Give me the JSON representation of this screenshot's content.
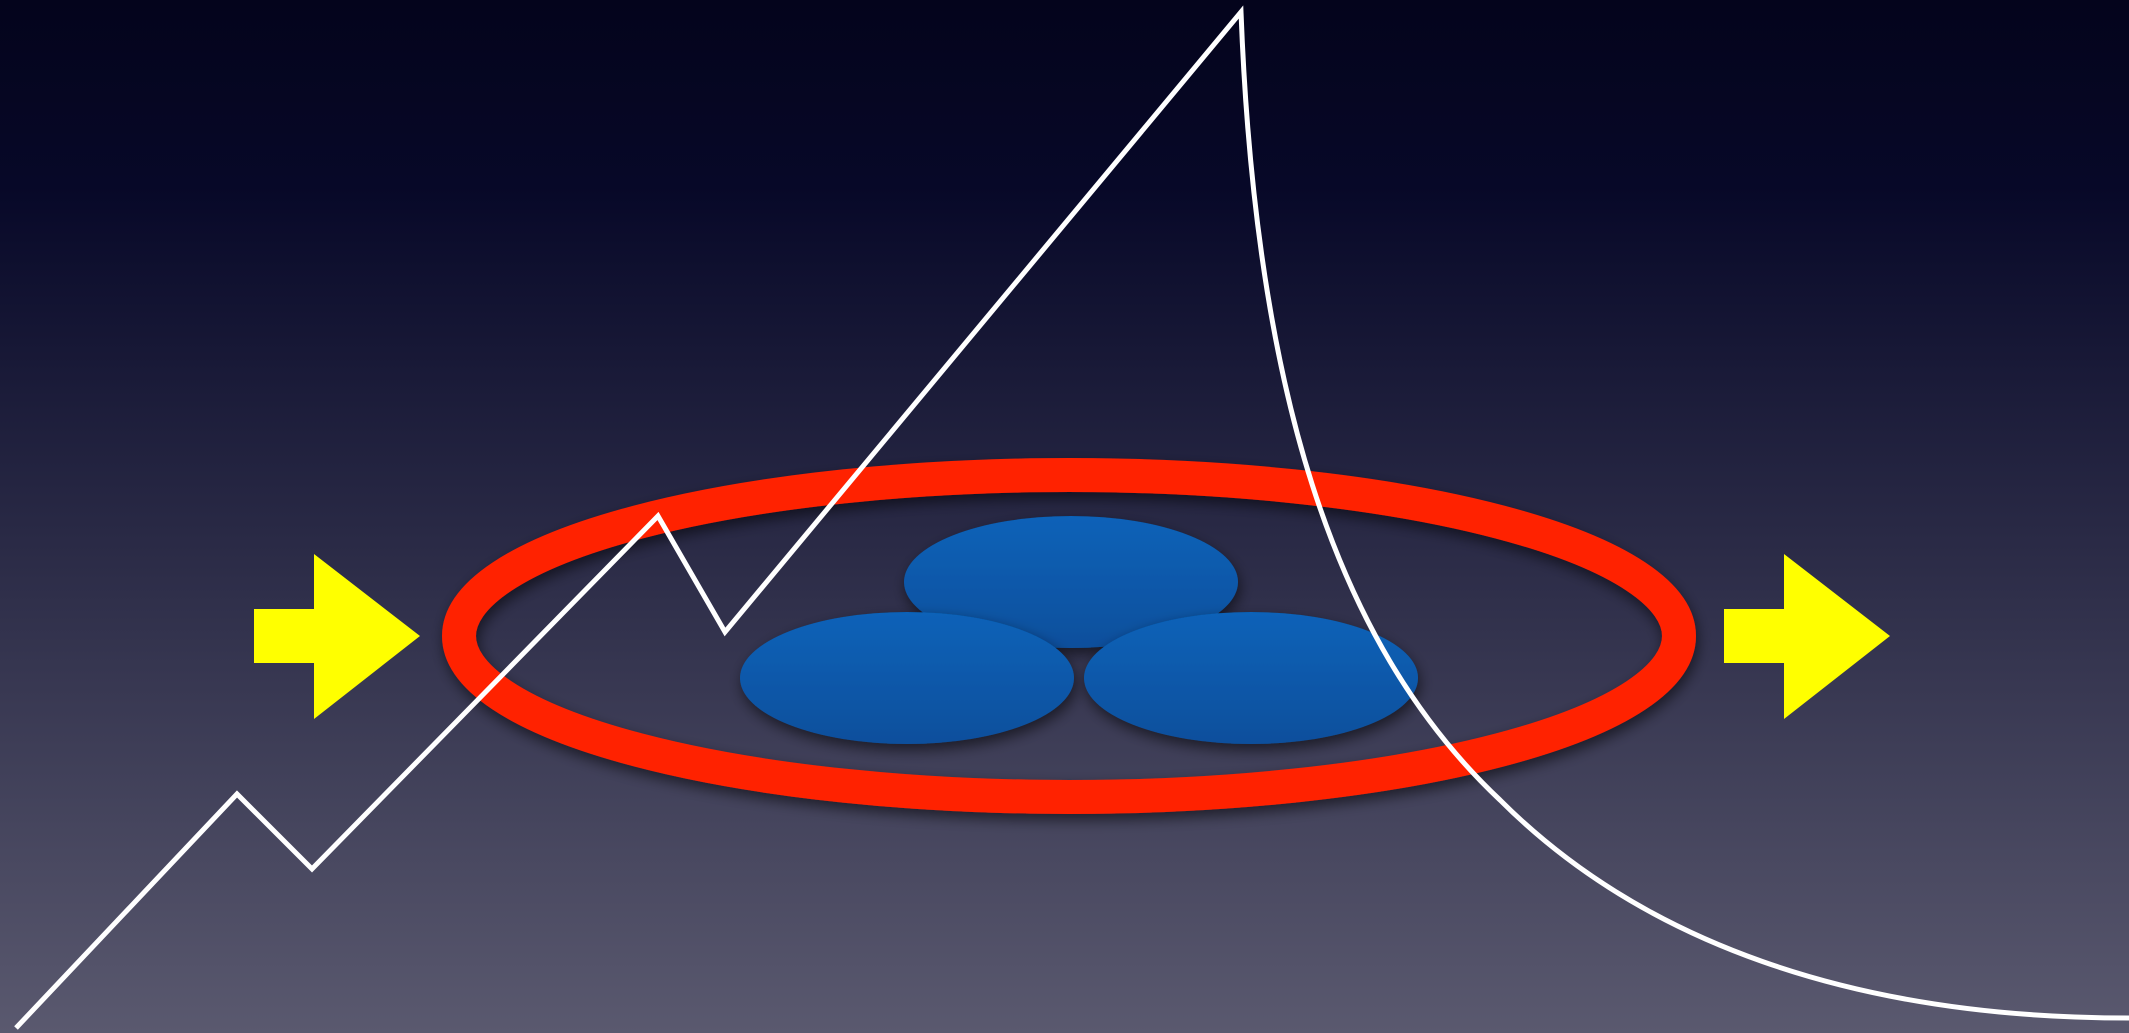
{
  "colors": {
    "background_top": "#04041c",
    "background_bottom": "#5a596f",
    "arrow": "#ffff00",
    "ring": "#ff2200",
    "ellipse_fill": "#0762b8",
    "ellipse_fill_dark": "#0a4f9c",
    "curve": "#ffffff"
  },
  "diagram": {
    "elements": [
      {
        "kind": "arrow",
        "name": "input-arrow",
        "direction": "right"
      },
      {
        "kind": "ring",
        "name": "containment-ring"
      },
      {
        "kind": "ellipse",
        "name": "blue-ellipse-top"
      },
      {
        "kind": "ellipse",
        "name": "blue-ellipse-left"
      },
      {
        "kind": "ellipse",
        "name": "blue-ellipse-right"
      },
      {
        "kind": "arrow",
        "name": "output-arrow",
        "direction": "right"
      },
      {
        "kind": "curve",
        "name": "rise-and-decay-curve",
        "shape": "zigzag rise to a sharp peak, then smooth decay"
      }
    ]
  }
}
